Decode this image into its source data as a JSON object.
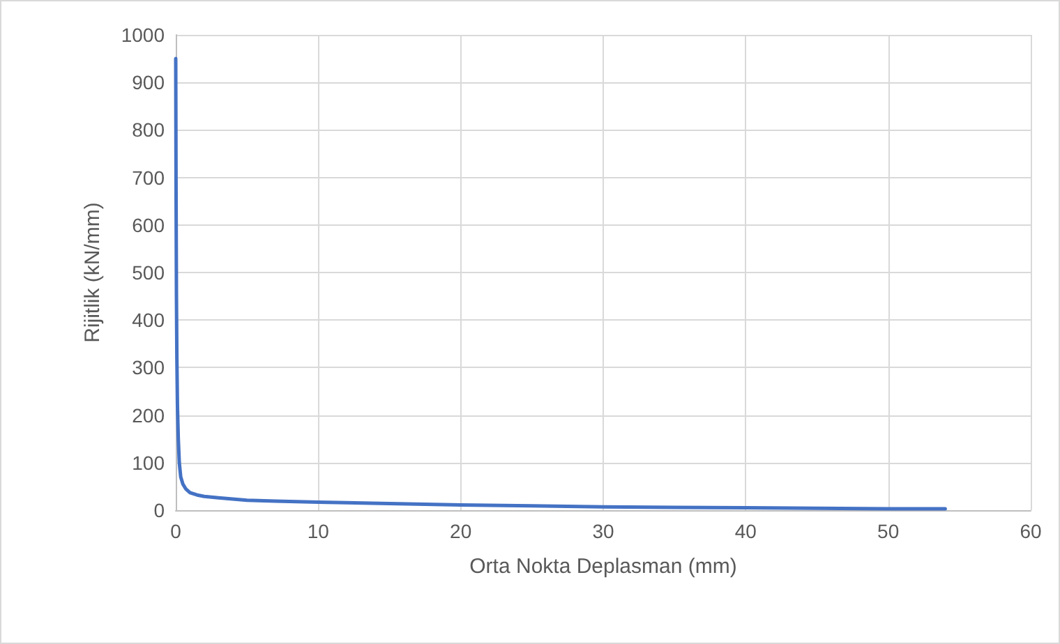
{
  "chart_data": {
    "type": "line",
    "xlabel": "Orta Nokta Deplasman (mm)",
    "ylabel": "Rijitlik (kN/mm)",
    "x": [
      0,
      0.02,
      0.05,
      0.08,
      0.12,
      0.18,
      0.25,
      0.35,
      0.5,
      0.7,
      1,
      1.5,
      2,
      3,
      5,
      7,
      10,
      15,
      20,
      25,
      30,
      35,
      40,
      45,
      50,
      54
    ],
    "series": [
      {
        "color": "#4472c4",
        "values": [
          950,
          700,
          450,
          320,
          220,
          150,
          100,
          70,
          55,
          45,
          37,
          32,
          29,
          26,
          21,
          19,
          17,
          14,
          11,
          9,
          7,
          6,
          5,
          4,
          3,
          3
        ]
      }
    ],
    "xlim": [
      0,
      60
    ],
    "xticks": [
      0,
      10,
      20,
      30,
      40,
      50,
      60
    ],
    "ylim": [
      0,
      1000
    ],
    "yticks": [
      0,
      100,
      200,
      300,
      400,
      500,
      600,
      700,
      800,
      900,
      1000
    ],
    "grid": true,
    "marker": "none",
    "line_style": "solid"
  }
}
